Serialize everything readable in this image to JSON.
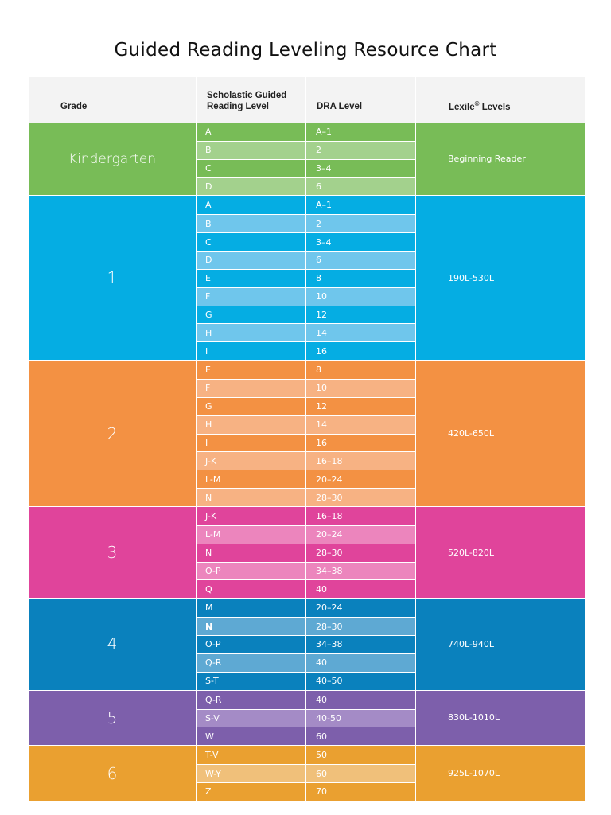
{
  "title": "Guided Reading Leveling Resource Chart",
  "header": {
    "grade": "Grade",
    "guided_line1": "Scholastic Guided",
    "guided_line2": "Reading Level",
    "dra": "DRA Level",
    "lexile": "Lexile",
    "lexile_mark": "®",
    "lexile_suffix": " Levels"
  },
  "groups": [
    {
      "grade": "Kindergarten",
      "lexile": "Beginning Reader",
      "color": "#78bc57",
      "light": "#a3d18d",
      "lexile_offset": 0,
      "rows": [
        {
          "guided": "A",
          "dra": "A–1"
        },
        {
          "guided": "B",
          "dra": "2"
        },
        {
          "guided": "C",
          "dra": "3–4"
        },
        {
          "guided": "D",
          "dra": "6"
        }
      ]
    },
    {
      "grade": "1",
      "lexile": "190L-530L",
      "color": "#05ade3",
      "light": "#6fc6ec",
      "lexile_offset": 0,
      "rows": [
        {
          "guided": "A",
          "dra": "A–1"
        },
        {
          "guided": "B",
          "dra": "2"
        },
        {
          "guided": "C",
          "dra": "3–4"
        },
        {
          "guided": "D",
          "dra": "6"
        },
        {
          "guided": "E",
          "dra": "8"
        },
        {
          "guided": "F",
          "dra": "10"
        },
        {
          "guided": "G",
          "dra": "12"
        },
        {
          "guided": "H",
          "dra": "14"
        },
        {
          "guided": "I",
          "dra": "16"
        }
      ]
    },
    {
      "grade": "2",
      "lexile": "420L-650L",
      "color": "#f39143",
      "light": "#f7b283",
      "lexile_offset": 0,
      "rows": [
        {
          "guided": "E",
          "dra": "8"
        },
        {
          "guided": "F",
          "dra": "10"
        },
        {
          "guided": "G",
          "dra": "12"
        },
        {
          "guided": "H",
          "dra": "14"
        },
        {
          "guided": "I",
          "dra": "16"
        },
        {
          "guided": "J-K",
          "dra": "16–18"
        },
        {
          "guided": "L-M",
          "dra": "20–24"
        },
        {
          "guided": "N",
          "dra": "28–30"
        }
      ]
    },
    {
      "grade": "3",
      "lexile": "520L-820L",
      "color": "#e0449b",
      "light": "#ec85bd",
      "lexile_offset": 0,
      "rows": [
        {
          "guided": "J-K",
          "dra": "16–18"
        },
        {
          "guided": "L-M",
          "dra": "20–24"
        },
        {
          "guided": "N",
          "dra": "28–30"
        },
        {
          "guided": "O-P",
          "dra": "34–38"
        },
        {
          "guided": "Q",
          "dra": "40"
        }
      ]
    },
    {
      "grade": "4",
      "lexile": "740L-940L",
      "color": "#0a81bd",
      "light": "#5ea9d3",
      "lexile_offset": 0,
      "rows": [
        {
          "guided": "M",
          "dra": "20–24"
        },
        {
          "guided": "N",
          "dra": "28–30",
          "bold": true
        },
        {
          "guided": "O-P",
          "dra": "34–38"
        },
        {
          "guided": "Q-R",
          "dra": "40"
        },
        {
          "guided": "S-T",
          "dra": "40–50"
        }
      ]
    },
    {
      "grade": "5",
      "lexile": "830L-1010L",
      "color": "#7d5fab",
      "light": "#a48bc6",
      "lexile_offset": 0,
      "rows": [
        {
          "guided": "Q-R",
          "dra": "40"
        },
        {
          "guided": "S-V",
          "dra": "40-50"
        },
        {
          "guided": "W",
          "dra": "60"
        }
      ]
    },
    {
      "grade": "6",
      "lexile": "925L-1070L",
      "color": "#eaa030",
      "light": "#f0c07a",
      "lexile_offset": 0,
      "rows": [
        {
          "guided": "T-V",
          "dra": "50"
        },
        {
          "guided": "W-Y",
          "dra": "60"
        },
        {
          "guided": "Z",
          "dra": "70"
        }
      ]
    }
  ]
}
